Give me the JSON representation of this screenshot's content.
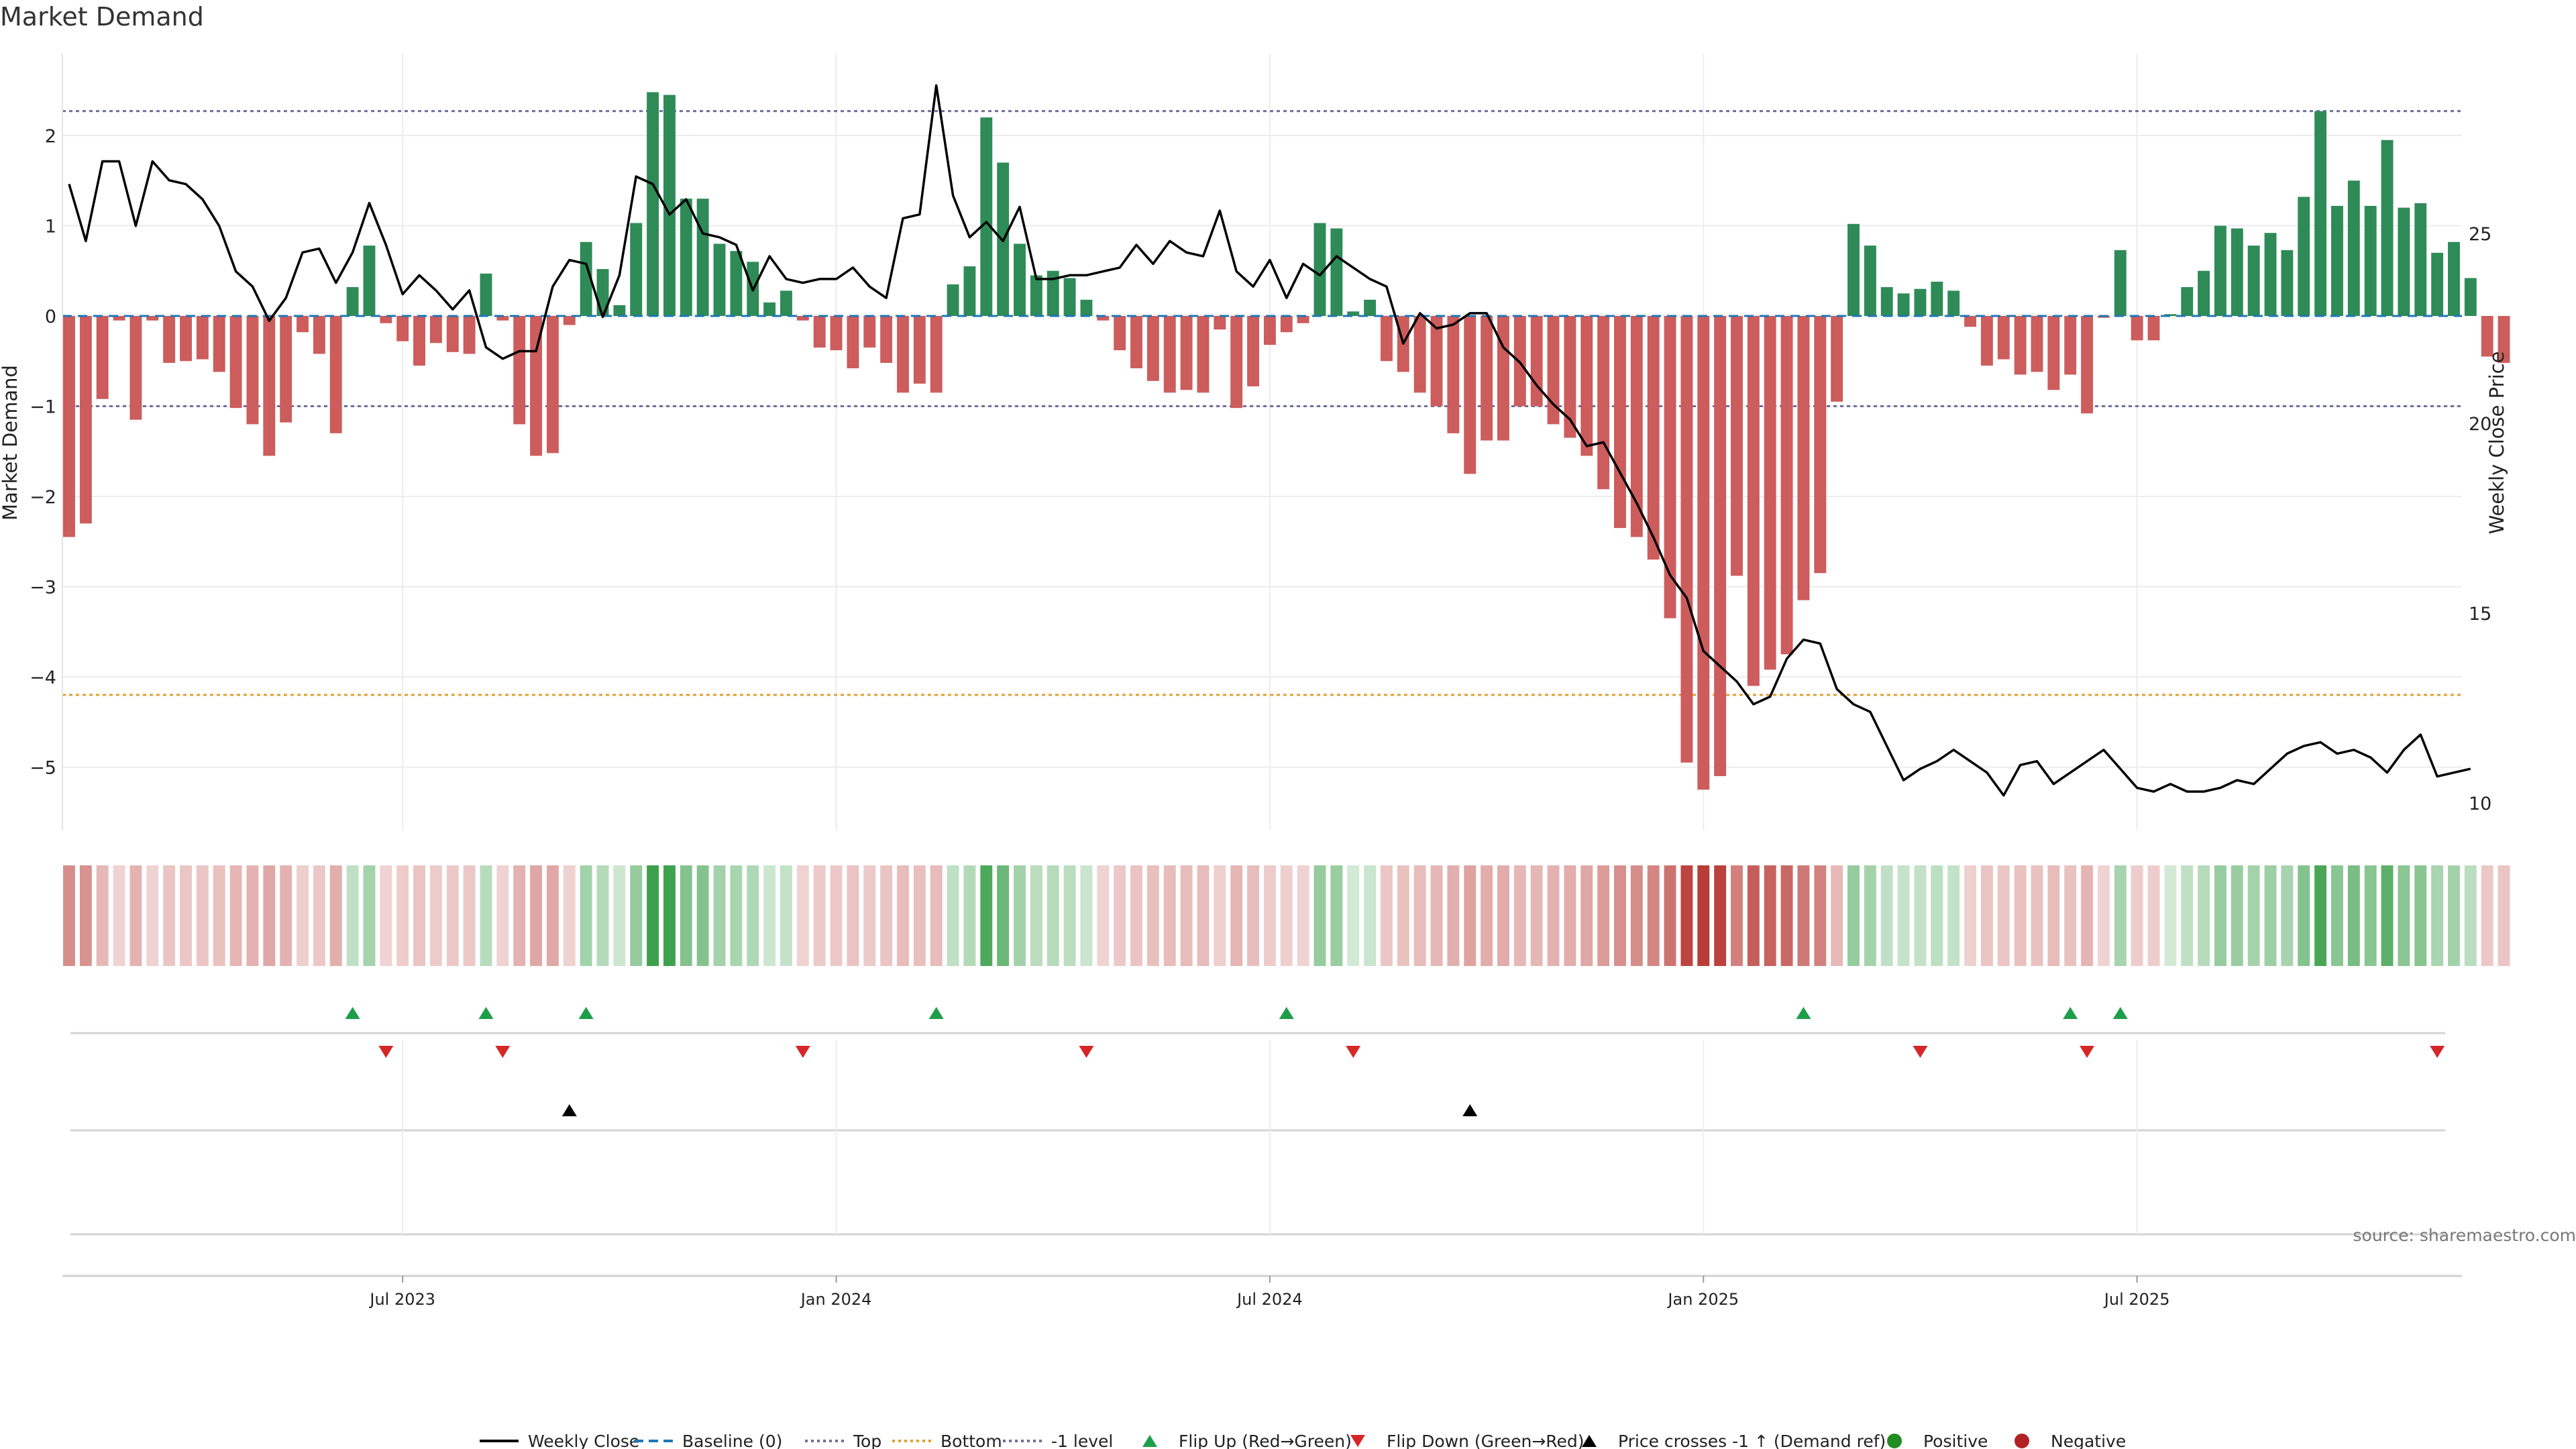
{
  "title": "Market Demand",
  "source": "source: sharemaestro.com",
  "colors": {
    "positive_bar": "#2e8b57",
    "negative_bar": "#cd5c5c",
    "price_line": "#000000",
    "baseline": "#1f77b4",
    "top_line": "#6e6e9e",
    "bottom_line": "#e0a030",
    "minus1_line": "#6e6e9e",
    "flip_up": "#1e9e4a",
    "flip_down": "#d62728",
    "cross_marker": "#000000",
    "positive_dot": "#228b22",
    "negative_dot": "#b22222"
  },
  "legend": [
    {
      "label": "Weekly Close",
      "kind": "line-solid",
      "color": "#000000"
    },
    {
      "label": "Baseline (0)",
      "kind": "line-dash",
      "color": "#1f77b4"
    },
    {
      "label": "Top",
      "kind": "line-dot",
      "color": "#6e6e9e"
    },
    {
      "label": "Bottom",
      "kind": "line-dot",
      "color": "#e0a030"
    },
    {
      "label": "-1 level",
      "kind": "line-dot",
      "color": "#6e6e9e"
    },
    {
      "label": "Flip Up (Red→Green)",
      "kind": "tri-up",
      "color": "#1e9e4a"
    },
    {
      "label": "Flip Down (Green→Red)",
      "kind": "tri-down",
      "color": "#d62728"
    },
    {
      "label": "Price crosses -1 ↑ (Demand ref)",
      "kind": "tri-up",
      "color": "#000000"
    },
    {
      "label": "Positive",
      "kind": "dot",
      "color": "#228b22"
    },
    {
      "label": "Negative",
      "kind": "dot",
      "color": "#b22222"
    }
  ],
  "chart_data": {
    "type": "bar",
    "title": "Market Demand",
    "ylabel_left": "Market Demand",
    "ylabel_right": "Weekly Close Price",
    "x_tick_labels": [
      "Jul 2023",
      "Jan 2024",
      "Jul 2024",
      "Jan 2025",
      "Jul 2025"
    ],
    "x_tick_weeks": [
      20,
      46,
      72,
      98,
      124
    ],
    "ylim_left": [
      -5.6,
      2.6
    ],
    "ylim_right": [
      9.1,
      29.4
    ],
    "yticks_left": [
      2,
      1,
      0,
      -1,
      -2,
      -3,
      -4,
      -5
    ],
    "yticks_right": [
      25,
      20,
      15,
      10
    ],
    "grid": true,
    "legend_position": "bottom",
    "reference_lines": {
      "top": 2.27,
      "baseline": 0,
      "minus1": -1,
      "bottom": -4.2
    },
    "weeks": 144,
    "demand": [
      -2.45,
      -2.3,
      -0.92,
      -0.05,
      -1.15,
      -0.05,
      -0.52,
      -0.5,
      -0.48,
      -0.62,
      -1.02,
      -1.2,
      -1.55,
      -1.18,
      -0.18,
      -0.42,
      -1.3,
      0.32,
      0.78,
      -0.08,
      -0.28,
      -0.55,
      -0.3,
      -0.4,
      -0.42,
      0.47,
      -0.05,
      -1.2,
      -1.55,
      -1.52,
      -0.1,
      0.82,
      0.52,
      0.12,
      1.03,
      2.48,
      2.45,
      1.3,
      1.3,
      0.8,
      0.72,
      0.6,
      0.15,
      0.28,
      -0.05,
      -0.35,
      -0.38,
      -0.58,
      -0.35,
      -0.52,
      -0.85,
      -0.75,
      -0.85,
      0.35,
      0.55,
      2.2,
      1.7,
      0.8,
      0.45,
      0.5,
      0.42,
      0.18,
      -0.05,
      -0.38,
      -0.58,
      -0.72,
      -0.85,
      -0.82,
      -0.85,
      -0.15,
      -1.02,
      -0.78,
      -0.32,
      -0.18,
      -0.08,
      1.03,
      0.97,
      0.05,
      0.18,
      -0.5,
      -0.62,
      -0.85,
      -1.0,
      -1.3,
      -1.75,
      -1.38,
      -1.38,
      -1.0,
      -1.0,
      -1.2,
      -1.35,
      -1.55,
      -1.92,
      -2.35,
      -2.45,
      -2.7,
      -3.35,
      -4.95,
      -5.25,
      -5.1,
      -2.88,
      -4.1,
      -3.92,
      -3.75,
      -3.15,
      -2.85,
      -0.95,
      1.02,
      0.78,
      0.32,
      0.25,
      0.3,
      0.38,
      0.28,
      -0.12,
      -0.55,
      -0.48,
      -0.65,
      -0.62,
      -0.82,
      -0.65,
      -1.08,
      -0.02,
      0.73,
      -0.27,
      -0.27,
      0.02,
      0.32,
      0.5,
      1.0,
      0.97,
      0.78,
      0.92,
      0.73,
      1.32,
      2.27,
      1.22,
      1.5,
      1.22,
      1.95,
      1.2,
      1.25,
      0.7,
      0.82,
      0.42,
      -0.45,
      -0.52
    ],
    "weekly_close": [
      26.3,
      24.8,
      26.9,
      26.9,
      25.2,
      26.9,
      26.4,
      26.3,
      25.9,
      25.2,
      24.0,
      23.6,
      22.7,
      23.3,
      24.5,
      24.6,
      23.7,
      24.5,
      25.8,
      24.7,
      23.4,
      23.9,
      23.5,
      23.0,
      23.5,
      22.0,
      21.7,
      21.9,
      21.9,
      23.6,
      24.3,
      24.2,
      22.8,
      23.9,
      26.5,
      26.3,
      25.5,
      25.9,
      25.0,
      24.9,
      24.7,
      23.5,
      24.4,
      23.8,
      23.7,
      23.8,
      23.8,
      24.1,
      23.6,
      23.3,
      25.4,
      25.5,
      28.9,
      26.0,
      24.9,
      25.3,
      24.8,
      25.7,
      23.8,
      23.8,
      23.9,
      23.9,
      24.0,
      24.1,
      24.7,
      24.2,
      24.8,
      24.5,
      24.4,
      25.6,
      24.0,
      23.6,
      24.3,
      23.3,
      24.2,
      23.9,
      24.4,
      24.1,
      23.8,
      23.6,
      22.1,
      22.9,
      22.5,
      22.6,
      22.9,
      22.9,
      22.0,
      21.6,
      21.0,
      20.5,
      20.1,
      19.4,
      19.5,
      18.7,
      17.9,
      17.0,
      16.0,
      15.4,
      14.0,
      13.6,
      13.2,
      12.6,
      12.8,
      13.8,
      14.3,
      14.2,
      13.0,
      12.6,
      12.4,
      11.5,
      10.6,
      10.9,
      11.1,
      11.4,
      11.1,
      10.8,
      10.2,
      11.0,
      11.1,
      10.5,
      10.8,
      11.1,
      11.4,
      10.9,
      10.4,
      10.3,
      10.5,
      10.3,
      10.3,
      10.4,
      10.6,
      10.5,
      10.9,
      11.3,
      11.5,
      11.6,
      11.3,
      11.4,
      11.2,
      10.8,
      11.4,
      11.8,
      10.7,
      10.8,
      10.9
    ],
    "heat_strip": "weekly demand intensity (red = negative, green = positive)",
    "flip_up_weeks": [
      17,
      25,
      31,
      52,
      73,
      104,
      120,
      123
    ],
    "flip_down_weeks": [
      19,
      26,
      44,
      61,
      77,
      111,
      121,
      142
    ],
    "price_cross_weeks": [
      30,
      84
    ]
  }
}
